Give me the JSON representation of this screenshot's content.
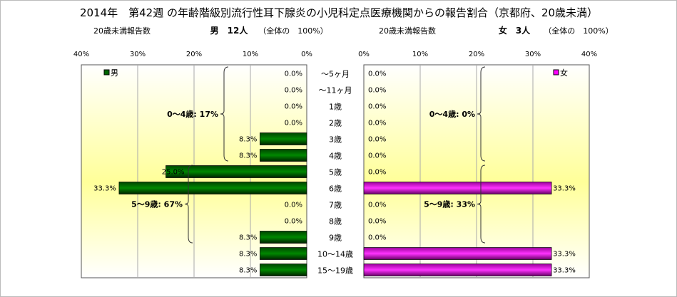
{
  "chart_data": {
    "type": "bar",
    "title": "2014年　第42週 の年齢階級別流行性耳下腺炎の小児科定点医療機関からの報告割合（京都府、20歳未満）",
    "categories": [
      "～5ヶ月",
      "～11ヶ月",
      "1歳",
      "2歳",
      "3歳",
      "4歳",
      "5歳",
      "6歳",
      "7歳",
      "8歳",
      "9歳",
      "10～14歳",
      "15～19歳"
    ],
    "series": [
      {
        "name": "男",
        "color": "#006600",
        "header_label": "20歳未満報告数",
        "header_count": "男　12人",
        "header_share": "（全体の　100%）",
        "values": [
          0,
          0,
          0,
          0,
          8.3,
          8.3,
          25.0,
          33.3,
          0,
          0,
          8.3,
          8.3,
          8.3
        ],
        "labels": [
          "0.0%",
          "0.0%",
          "0.0%",
          "0.0%",
          "8.3%",
          "8.3%",
          "25.0%",
          "33.3%",
          "0.0%",
          "0.0%",
          "8.3%",
          "8.3%",
          "8.3%"
        ],
        "annotations": [
          "0～4歳: 17%",
          "5～9歳: 67%"
        ]
      },
      {
        "name": "女",
        "color": "#ff00ff",
        "header_label": "20歳未満報告数",
        "header_count": "女　3人",
        "header_share": "（全体の　100%）",
        "values": [
          0,
          0,
          0,
          0,
          0,
          0,
          0,
          33.3,
          0,
          0,
          0,
          33.3,
          33.3
        ],
        "labels": [
          "0.0%",
          "0.0%",
          "0.0%",
          "0.0%",
          "0.0%",
          "0.0%",
          "0.0%",
          "33.3%",
          "0.0%",
          "0.0%",
          "0.0%",
          "33.3%",
          "33.3%"
        ],
        "annotations": [
          "0～4歳: 0%",
          "5～9歳: 33%"
        ]
      }
    ],
    "xlim": [
      0,
      40
    ],
    "ticks": [
      "0%",
      "10%",
      "20%",
      "30%",
      "40%"
    ],
    "grid": true
  }
}
